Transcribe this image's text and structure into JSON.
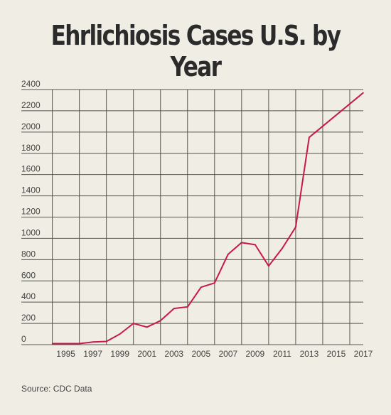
{
  "chart_data": {
    "type": "line",
    "title": "Ehrlichiosis Cases U.S. by Year",
    "source": "Source: CDC Data",
    "xlabel": "",
    "ylabel": "",
    "xlim": [
      1993.6,
      2017
    ],
    "ylim": [
      0,
      2400
    ],
    "grid": true,
    "line_color": "#c8194a",
    "y_ticks": [
      0,
      200,
      400,
      600,
      800,
      1000,
      1200,
      1400,
      1600,
      1800,
      2000,
      2200,
      2400
    ],
    "x_ticks": [
      1995,
      1997,
      1999,
      2001,
      2003,
      2005,
      2007,
      2009,
      2011,
      2013,
      2015,
      2017
    ],
    "x_grid_years": [
      1994,
      1996,
      1998,
      2000,
      2002,
      2004,
      2006,
      2008,
      2010,
      2012,
      2014,
      2016
    ],
    "series": [
      {
        "x": [
          1994,
          1995,
          1996,
          1997,
          1998,
          1999,
          2000,
          2001,
          2002,
          2003,
          2004,
          2005,
          2006,
          2007,
          2008,
          2009,
          2010,
          2011,
          2012,
          2013,
          2017
        ],
        "y": [
          10,
          10,
          10,
          25,
          30,
          100,
          200,
          165,
          225,
          340,
          355,
          540,
          580,
          850,
          960,
          940,
          740,
          905,
          1105,
          1950,
          2370
        ]
      }
    ]
  }
}
